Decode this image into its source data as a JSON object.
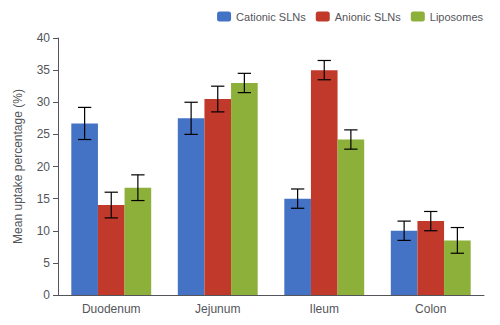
{
  "chart_data": {
    "type": "bar",
    "categories": [
      "Duodenum",
      "Jejunum",
      "Ileum",
      "Colon"
    ],
    "series": [
      {
        "name": "Cationic SLNs",
        "color": "#4472C4",
        "values": [
          26.7,
          27.5,
          15.0,
          10.0
        ],
        "errors": [
          2.5,
          2.5,
          1.5,
          1.5
        ]
      },
      {
        "name": "Anionic SLNs",
        "color": "#C0392B",
        "values": [
          14.0,
          30.5,
          35.0,
          11.5
        ],
        "errors": [
          2.0,
          2.0,
          1.5,
          1.5
        ]
      },
      {
        "name": "Liposomes",
        "color": "#8DB03A",
        "values": [
          16.7,
          33.0,
          24.2,
          8.5
        ],
        "errors": [
          2.0,
          1.5,
          1.5,
          2.0
        ]
      }
    ],
    "ylabel": "Mean uptake percentage (%)",
    "ylim": [
      0,
      40
    ],
    "yticks": [
      0,
      5,
      10,
      15,
      20,
      25,
      30,
      35,
      40
    ],
    "grid": false,
    "legend": "upper right"
  }
}
